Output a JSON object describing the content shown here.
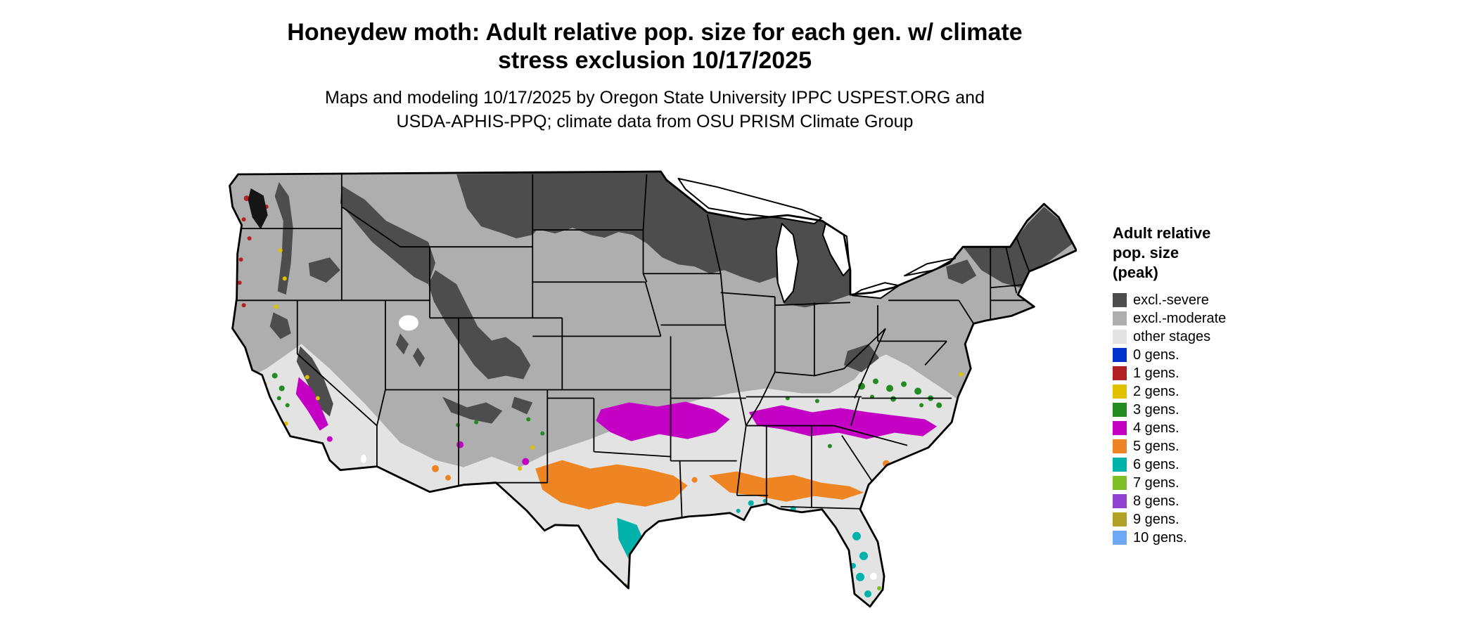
{
  "title": {
    "lines": [
      "Honeydew moth: Adult relative pop. size for each gen. w/ climate",
      "stress exclusion 10/17/2025"
    ]
  },
  "subtitle": {
    "lines": [
      "Maps and modeling 10/17/2025 by Oregon State University IPPC USPEST.ORG and",
      "USDA-APHIS-PPQ; climate data from OSU PRISM Climate Group"
    ]
  },
  "legend": {
    "title_lines": [
      "Adult relative",
      "pop. size",
      "(peak)"
    ],
    "items": [
      {
        "label": "excl.-severe",
        "color": "#4d4d4d"
      },
      {
        "label": "excl.-moderate",
        "color": "#aeaeae"
      },
      {
        "label": "other stages",
        "color": "#e3e3e3"
      },
      {
        "label": "0 gens.",
        "color": "#0033cc"
      },
      {
        "label": "1 gens.",
        "color": "#b22222"
      },
      {
        "label": "2 gens.",
        "color": "#e0c000"
      },
      {
        "label": "3 gens.",
        "color": "#228b22"
      },
      {
        "label": "4 gens.",
        "color": "#c400c4"
      },
      {
        "label": "5 gens.",
        "color": "#ef8423"
      },
      {
        "label": "6 gens.",
        "color": "#00b2a9"
      },
      {
        "label": "7 gens.",
        "color": "#7fbf26"
      },
      {
        "label": "8 gens.",
        "color": "#9240cf"
      },
      {
        "label": "9 gens.",
        "color": "#b3a125"
      },
      {
        "label": "10 gens.",
        "color": "#6fa7f7"
      }
    ]
  },
  "map": {
    "region": "Contiguous United States",
    "type": "gridded generation-count map with climate stress exclusion",
    "water_color": "#ffffff",
    "border_color": "#000000",
    "observations": [
      {
        "class": "excl.-severe",
        "where": "northern tier (MT, ND, MN, WI, MI), northern Rockies, Cascades, Sierra Nevada, northern New England"
      },
      {
        "class": "excl.-moderate",
        "where": "interior West, central Plains, Midwest, Northeast"
      },
      {
        "class": "other stages",
        "where": "southern tier and Southeast background"
      },
      {
        "class": "1 gens.",
        "where": "specks along the Washington and Oregon coast"
      },
      {
        "class": "2 gens.",
        "where": "specks along the California coast and mountain margins"
      },
      {
        "class": "3 gens.",
        "where": "speckled band over eastern Virginia, Maryland and the Carolinas; California coast ranges; AZ/NM margins"
      },
      {
        "class": "4 gens.",
        "where": "band across Oklahoma and north Texas; band from Tennessee through the Carolinas into Virginia; California Central Valley"
      },
      {
        "class": "5 gens.",
        "where": "broad band across central Texas and the Gulf states into Georgia and South Carolina"
      },
      {
        "class": "6 gens.",
        "where": "south Texas coast, Gulf coast and Florida peninsula"
      },
      {
        "class": "7 gens.",
        "where": "southern tip of Texas and south Florida"
      }
    ]
  }
}
